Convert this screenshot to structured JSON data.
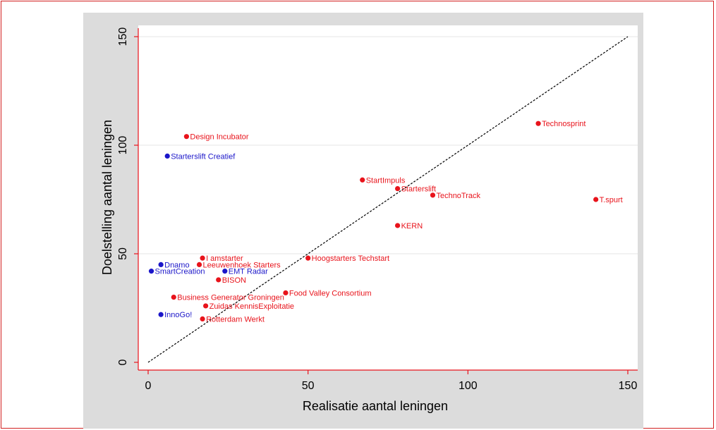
{
  "chart_data": {
    "type": "scatter",
    "title": "",
    "xlabel": "Realisatie aantal leningen",
    "ylabel": "Doelstelling aantal leningen",
    "xlim": [
      -3,
      151
    ],
    "ylim": [
      -3,
      152
    ],
    "xticks": [
      0,
      50,
      100,
      150
    ],
    "yticks": [
      0,
      50,
      100,
      150
    ],
    "grid": "horizontal",
    "reference_line": {
      "from": [
        0,
        0
      ],
      "to": [
        150,
        150
      ],
      "style": "dashed"
    },
    "colors": {
      "red": "#e8131b",
      "blue": "#1b16c9",
      "frame": "#d21f1f",
      "panel": "#dcdcdc",
      "plot": "#ffffff",
      "axis": "#e8131b",
      "gridline": "#e6e6e6"
    },
    "points": [
      {
        "label": "Design Incubator",
        "x": 12,
        "y": 104,
        "color": "red"
      },
      {
        "label": "Starterslift Creatief",
        "x": 6,
        "y": 95,
        "color": "blue"
      },
      {
        "label": "Technosprint",
        "x": 122,
        "y": 110,
        "color": "red"
      },
      {
        "label": "StartImpuls",
        "x": 67,
        "y": 84,
        "color": "red"
      },
      {
        "label": "Starterslift",
        "x": 78,
        "y": 80,
        "color": "red"
      },
      {
        "label": "TechnoTrack",
        "x": 89,
        "y": 77,
        "color": "red"
      },
      {
        "label": "T.spurt",
        "x": 140,
        "y": 75,
        "color": "red"
      },
      {
        "label": "KERN",
        "x": 78,
        "y": 63,
        "color": "red"
      },
      {
        "label": "I amstarter",
        "x": 17,
        "y": 48,
        "color": "red"
      },
      {
        "label": "Hoogstarters Techstart",
        "x": 50,
        "y": 48,
        "color": "red"
      },
      {
        "label": "Dnamo",
        "x": 4,
        "y": 45,
        "color": "blue"
      },
      {
        "label": "Leeuwenhoek Starters",
        "x": 16,
        "y": 45,
        "color": "red"
      },
      {
        "label": "SmartCreation",
        "x": 1,
        "y": 42,
        "color": "blue"
      },
      {
        "label": "EMT Radar",
        "x": 24,
        "y": 42,
        "color": "blue"
      },
      {
        "label": "BISON",
        "x": 22,
        "y": 38,
        "color": "red"
      },
      {
        "label": "Food Valley Consortium",
        "x": 43,
        "y": 32,
        "color": "red"
      },
      {
        "label": "Business Generator Groningen",
        "x": 8,
        "y": 30,
        "color": "red"
      },
      {
        "label": "Zuidas KennisExploitatie",
        "x": 18,
        "y": 26,
        "color": "red"
      },
      {
        "label": "InnoGo!",
        "x": 4,
        "y": 22,
        "color": "blue"
      },
      {
        "label": "Rotterdam Werkt",
        "x": 17,
        "y": 20,
        "color": "red"
      }
    ]
  }
}
